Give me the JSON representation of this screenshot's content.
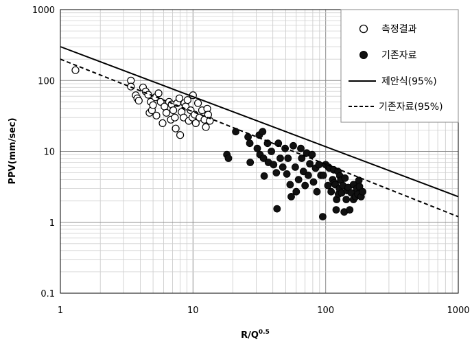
{
  "chart_data": {
    "type": "scatter",
    "xscale": "log",
    "yscale": "log",
    "xlim": [
      1,
      1000
    ],
    "ylim": [
      0.1,
      1000
    ],
    "grid": true,
    "minor_grid": true,
    "legend_position": "top-right",
    "ylabel": "PPV(mm/sec)",
    "xlabel": {
      "base": "R/Q",
      "superscript": "0.5"
    },
    "xticks": [
      1,
      10,
      100,
      1000
    ],
    "xtick_labels": [
      "1",
      "10",
      "100",
      "1000"
    ],
    "yticks": [
      0.1,
      1,
      10,
      100,
      1000
    ],
    "ytick_labels": [
      "0.1",
      "1",
      "10",
      "100",
      "1000"
    ],
    "series": [
      {
        "name": "측정결과",
        "kind": "scatter",
        "marker": "open-circle",
        "color": "#000000",
        "points": [
          [
            1.3,
            140
          ],
          [
            3.4,
            100
          ],
          [
            3.4,
            82
          ],
          [
            3.7,
            62
          ],
          [
            3.8,
            56
          ],
          [
            3.9,
            52
          ],
          [
            4.2,
            80
          ],
          [
            4.4,
            70
          ],
          [
            4.6,
            63
          ],
          [
            4.7,
            35
          ],
          [
            4.8,
            50
          ],
          [
            4.9,
            38
          ],
          [
            5.0,
            45
          ],
          [
            5.2,
            58
          ],
          [
            5.3,
            32
          ],
          [
            5.5,
            66
          ],
          [
            5.7,
            50
          ],
          [
            5.9,
            25
          ],
          [
            6.1,
            43
          ],
          [
            6.3,
            35
          ],
          [
            6.6,
            50
          ],
          [
            6.8,
            28
          ],
          [
            6.9,
            46
          ],
          [
            7.1,
            38
          ],
          [
            7.3,
            30
          ],
          [
            7.4,
            21
          ],
          [
            7.6,
            48
          ],
          [
            7.9,
            56
          ],
          [
            8.0,
            17
          ],
          [
            8.2,
            36
          ],
          [
            8.5,
            30
          ],
          [
            8.6,
            48
          ],
          [
            8.8,
            43
          ],
          [
            9.1,
            53
          ],
          [
            9.3,
            27
          ],
          [
            9.6,
            38
          ],
          [
            9.9,
            30
          ],
          [
            10,
            62
          ],
          [
            10.3,
            33
          ],
          [
            10.5,
            25
          ],
          [
            10.9,
            48
          ],
          [
            11.2,
            30
          ],
          [
            11.7,
            38
          ],
          [
            12.2,
            28
          ],
          [
            12.5,
            22
          ],
          [
            12.8,
            40
          ],
          [
            13,
            33
          ],
          [
            13.4,
            27
          ]
        ]
      },
      {
        "name": "기존자료",
        "kind": "scatter",
        "marker": "filled-circle",
        "color": "#000000",
        "points": [
          [
            18,
            9
          ],
          [
            18.5,
            8
          ],
          [
            21,
            19
          ],
          [
            26,
            16
          ],
          [
            26.8,
            13
          ],
          [
            27,
            7
          ],
          [
            30.5,
            11
          ],
          [
            31.6,
            17
          ],
          [
            32,
            9
          ],
          [
            33.5,
            19
          ],
          [
            34,
            8
          ],
          [
            34.4,
            4.5
          ],
          [
            36.5,
            13
          ],
          [
            37,
            7
          ],
          [
            39,
            10
          ],
          [
            40.5,
            6.5
          ],
          [
            42.5,
            5
          ],
          [
            43,
            1.55
          ],
          [
            44,
            13
          ],
          [
            45.5,
            8
          ],
          [
            47.5,
            6
          ],
          [
            49.5,
            11
          ],
          [
            51,
            4.8
          ],
          [
            52,
            8
          ],
          [
            54,
            3.4
          ],
          [
            55,
            2.3
          ],
          [
            57,
            12
          ],
          [
            59,
            6
          ],
          [
            60,
            2.7
          ],
          [
            62.5,
            4
          ],
          [
            65,
            11
          ],
          [
            66,
            8
          ],
          [
            68,
            5.2
          ],
          [
            70,
            3.3
          ],
          [
            72,
            9.5
          ],
          [
            74,
            4.6
          ],
          [
            76,
            6.7
          ],
          [
            79,
            9
          ],
          [
            81,
            3.7
          ],
          [
            84,
            5.8
          ],
          [
            86,
            2.7
          ],
          [
            89,
            6.5
          ],
          [
            92,
            4.6
          ],
          [
            95,
            1.2
          ],
          [
            96,
            4.6
          ],
          [
            100,
            6.5
          ],
          [
            104,
            3.3
          ],
          [
            105,
            6
          ],
          [
            107,
            5.8
          ],
          [
            110,
            2.7
          ],
          [
            113,
            4
          ],
          [
            115,
            5.5
          ],
          [
            116,
            3.6
          ],
          [
            118,
            3.4
          ],
          [
            120,
            1.5
          ],
          [
            121,
            2.1
          ],
          [
            124,
            5.2
          ],
          [
            125,
            2.5
          ],
          [
            127,
            3
          ],
          [
            128,
            4.5
          ],
          [
            130,
            3.9
          ],
          [
            132,
            2.6
          ],
          [
            135,
            3.3
          ],
          [
            138,
            1.4
          ],
          [
            140,
            4.2
          ],
          [
            143,
            2.1
          ],
          [
            145,
            2.8
          ],
          [
            148,
            3.1
          ],
          [
            152,
            1.5
          ],
          [
            156,
            2.6
          ],
          [
            162,
            3.4
          ],
          [
            162,
            2.1
          ],
          [
            168,
            2.3
          ],
          [
            172,
            3
          ],
          [
            175,
            2.5
          ],
          [
            178,
            3.9
          ],
          [
            180,
            3.2
          ],
          [
            185,
            2.3
          ],
          [
            190,
            2.7
          ]
        ]
      },
      {
        "name": "제안식(95%)",
        "kind": "line",
        "style": "solid",
        "color": "#000000",
        "x": [
          1,
          1000
        ],
        "y": [
          300,
          2.3
        ]
      },
      {
        "name": "기존자료(95%)",
        "kind": "line",
        "style": "dashed",
        "color": "#000000",
        "x": [
          1,
          1000
        ],
        "y": [
          200,
          1.2
        ]
      }
    ]
  }
}
